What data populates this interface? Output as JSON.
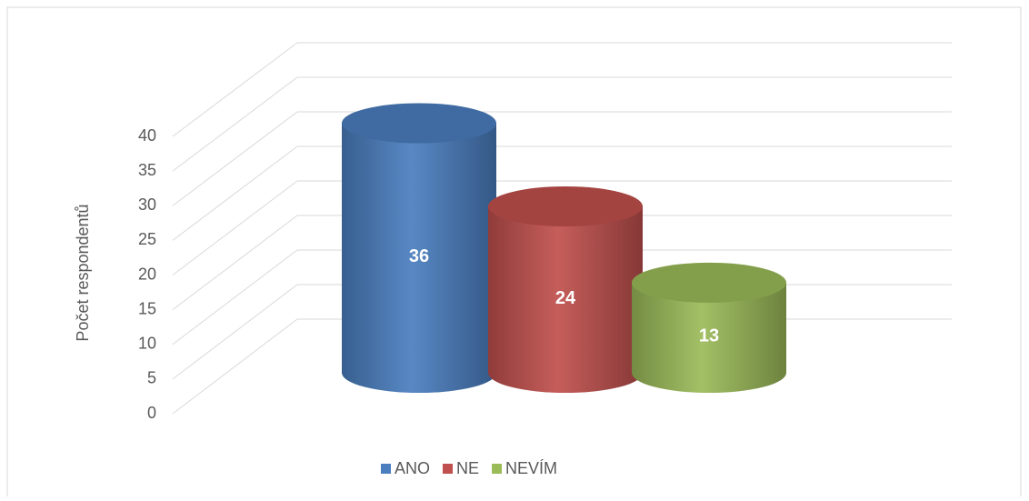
{
  "chart_data": {
    "type": "bar3d",
    "y_axis_label": "Počet respondentů",
    "ylim": [
      0,
      40
    ],
    "yticks": [
      0,
      5,
      10,
      15,
      20,
      25,
      30,
      35,
      40
    ],
    "grid": true,
    "legend": "bottom",
    "series": [
      {
        "name": "ANO",
        "color": "#4a7ebf",
        "values": [
          36
        ]
      },
      {
        "name": "NE",
        "color": "#c0504d",
        "values": [
          24
        ]
      },
      {
        "name": "NEVÍM",
        "color": "#9bbb59",
        "values": [
          13
        ]
      }
    ]
  }
}
